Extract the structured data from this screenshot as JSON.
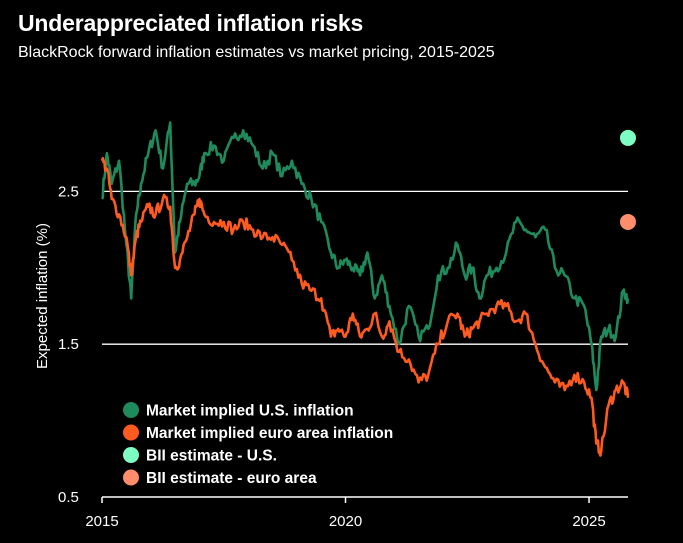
{
  "chart_data": {
    "type": "line",
    "title": "Underappreciated inflation risks",
    "subtitle": "BlackRock forward inflation estimates vs market pricing, 2015-2025",
    "xlabel": "",
    "ylabel": "Expected inflation (%)",
    "xlim": [
      2015,
      2025.8
    ],
    "ylim": [
      0.5,
      3.0
    ],
    "x_ticks": [
      "2015",
      "2020",
      "2025"
    ],
    "y_ticks": [
      "0.5",
      "1.5",
      "2.5"
    ],
    "series": [
      {
        "name": "Market implied U.S. inflation",
        "color": "#1f8a5b",
        "x": [
          2015.0,
          2015.1,
          2015.2,
          2015.35,
          2015.5,
          2015.6,
          2015.7,
          2015.8,
          2015.95,
          2016.1,
          2016.25,
          2016.4,
          2016.5,
          2016.6,
          2016.75,
          2016.9,
          2017.0,
          2017.1,
          2017.3,
          2017.5,
          2017.7,
          2017.9,
          2018.1,
          2018.3,
          2018.5,
          2018.7,
          2018.9,
          2019.1,
          2019.3,
          2019.5,
          2019.7,
          2019.85,
          2020.0,
          2020.15,
          2020.3,
          2020.45,
          2020.6,
          2020.75,
          2020.9,
          2021.1,
          2021.3,
          2021.5,
          2021.7,
          2021.9,
          2022.1,
          2022.3,
          2022.45,
          2022.6,
          2022.75,
          2022.9,
          2023.1,
          2023.3,
          2023.5,
          2023.7,
          2023.9,
          2024.1,
          2024.3,
          2024.5,
          2024.7,
          2024.9,
          2025.05,
          2025.15,
          2025.25,
          2025.4,
          2025.55,
          2025.7,
          2025.8
        ],
        "values": [
          2.45,
          2.75,
          2.55,
          2.7,
          2.15,
          1.8,
          2.35,
          2.55,
          2.75,
          2.9,
          2.65,
          2.95,
          2.1,
          2.3,
          2.55,
          2.55,
          2.6,
          2.75,
          2.8,
          2.7,
          2.85,
          2.9,
          2.8,
          2.65,
          2.75,
          2.6,
          2.7,
          2.55,
          2.45,
          2.3,
          2.1,
          2.0,
          2.05,
          2.0,
          1.95,
          2.1,
          1.8,
          1.95,
          1.75,
          1.5,
          1.75,
          1.55,
          1.6,
          1.95,
          2.0,
          2.15,
          1.95,
          2.0,
          1.8,
          1.95,
          2.0,
          2.1,
          2.3,
          2.25,
          2.2,
          2.25,
          2.0,
          1.95,
          1.8,
          1.75,
          1.5,
          1.2,
          1.55,
          1.6,
          1.55,
          1.85,
          1.8
        ]
      },
      {
        "name": "Market implied euro area inflation",
        "color": "#ff5a1f",
        "x": [
          2015.0,
          2015.1,
          2015.2,
          2015.35,
          2015.5,
          2015.6,
          2015.7,
          2015.8,
          2015.95,
          2016.1,
          2016.25,
          2016.4,
          2016.5,
          2016.6,
          2016.75,
          2016.9,
          2017.0,
          2017.1,
          2017.3,
          2017.5,
          2017.7,
          2017.9,
          2018.1,
          2018.3,
          2018.5,
          2018.7,
          2018.9,
          2019.1,
          2019.3,
          2019.5,
          2019.7,
          2019.85,
          2020.0,
          2020.15,
          2020.3,
          2020.45,
          2020.6,
          2020.75,
          2020.9,
          2021.1,
          2021.3,
          2021.5,
          2021.7,
          2021.9,
          2022.1,
          2022.3,
          2022.45,
          2022.6,
          2022.75,
          2022.9,
          2023.1,
          2023.3,
          2023.5,
          2023.7,
          2023.9,
          2024.1,
          2024.3,
          2024.5,
          2024.7,
          2024.9,
          2025.05,
          2025.15,
          2025.25,
          2025.4,
          2025.55,
          2025.7,
          2025.8
        ],
        "values": [
          2.7,
          2.65,
          2.45,
          2.35,
          2.2,
          1.95,
          2.2,
          2.3,
          2.4,
          2.35,
          2.45,
          2.4,
          2.0,
          2.05,
          2.2,
          2.35,
          2.45,
          2.35,
          2.3,
          2.3,
          2.25,
          2.3,
          2.25,
          2.2,
          2.2,
          2.15,
          2.05,
          1.9,
          1.85,
          1.8,
          1.55,
          1.6,
          1.55,
          1.7,
          1.55,
          1.6,
          1.7,
          1.55,
          1.65,
          1.45,
          1.4,
          1.25,
          1.3,
          1.5,
          1.65,
          1.7,
          1.55,
          1.6,
          1.65,
          1.7,
          1.75,
          1.75,
          1.65,
          1.7,
          1.5,
          1.35,
          1.25,
          1.2,
          1.3,
          1.25,
          1.15,
          0.85,
          0.8,
          1.1,
          1.2,
          1.25,
          1.15
        ]
      }
    ],
    "points": [
      {
        "name": "BII estimate - U.S.",
        "color": "#7dffc4",
        "x": 2025.8,
        "y": 2.85
      },
      {
        "name": "BII estimate - euro area",
        "color": "#ff8c6b",
        "x": 2025.8,
        "y": 2.3
      }
    ],
    "legend": {
      "placement": "bottom-left",
      "entries": [
        {
          "label": "Market implied U.S. inflation",
          "color": "#1f8a5b"
        },
        {
          "label": "Market implied euro area inflation",
          "color": "#ff5a1f"
        },
        {
          "label": "BII estimate  - U.S.",
          "color": "#7dffc4"
        },
        {
          "label": "BII estimate  - euro area",
          "color": "#ff8c6b"
        }
      ]
    },
    "grid": true
  }
}
